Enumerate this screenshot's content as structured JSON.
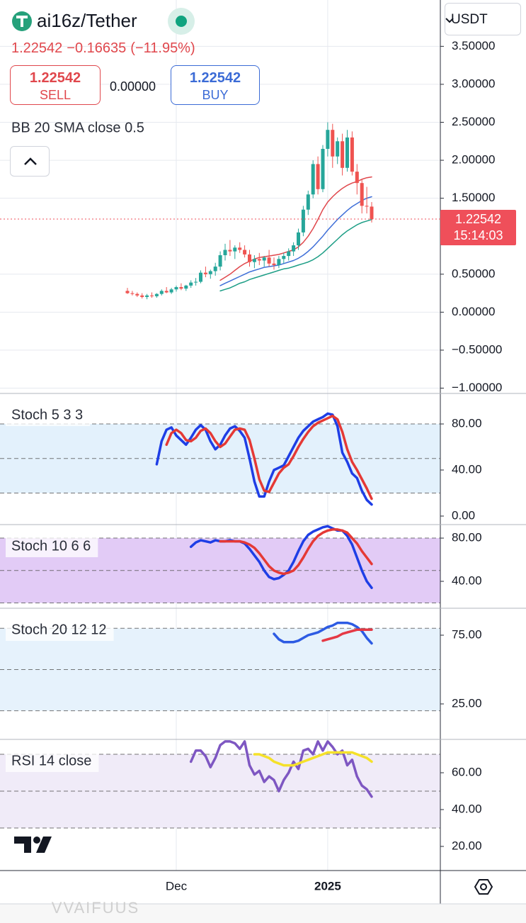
{
  "header": {
    "symbol": "ai16z/Tether",
    "price": "1.22542",
    "change": "−0.16635",
    "change_pct": "(−11.95%)",
    "sell_price": "1.22542",
    "sell_label": "SELL",
    "spread": "0.00000",
    "buy_price": "1.22542",
    "buy_label": "BUY",
    "currency": "USDT"
  },
  "price_tag": {
    "price": "1.22542",
    "countdown": "15:14:03"
  },
  "footer": "VVAIFUUS",
  "chart_data": [
    {
      "type": "candlestick",
      "title": "BB 20 SMA close 0.5",
      "categories": [
        null,
        null,
        null,
        null,
        null,
        null,
        null,
        null,
        null,
        null,
        "Dec",
        null,
        null,
        null,
        null,
        null,
        null,
        null,
        null,
        null,
        null,
        null,
        null,
        null,
        null,
        null,
        null,
        null,
        null,
        null,
        null,
        null,
        null,
        null,
        null,
        null,
        null,
        null,
        null,
        null,
        null,
        "2025",
        null,
        null,
        null,
        null,
        null,
        null,
        null,
        null,
        null
      ],
      "open": [
        0.28,
        0.25,
        0.24,
        0.22,
        0.2,
        0.22,
        0.21,
        0.24,
        0.28,
        0.26,
        0.3,
        0.33,
        0.31,
        0.35,
        0.39,
        0.4,
        0.52,
        0.5,
        0.54,
        0.6,
        0.75,
        0.82,
        0.8,
        0.85,
        0.82,
        0.76,
        0.66,
        0.7,
        0.68,
        0.72,
        0.64,
        0.62,
        0.7,
        0.74,
        0.8,
        0.88,
        1.05,
        1.35,
        1.55,
        1.95,
        1.62,
        2.15,
        2.4,
        2.05,
        2.25,
        1.9,
        2.3,
        1.85,
        1.7,
        1.4,
        1.39
      ],
      "high": [
        0.32,
        0.28,
        0.26,
        0.25,
        0.24,
        0.26,
        0.25,
        0.3,
        0.33,
        0.32,
        0.35,
        0.38,
        0.36,
        0.42,
        0.45,
        0.55,
        0.6,
        0.56,
        0.65,
        0.8,
        0.9,
        0.95,
        0.88,
        0.92,
        0.88,
        0.82,
        0.75,
        0.78,
        0.74,
        0.82,
        0.72,
        0.74,
        0.78,
        0.84,
        0.92,
        1.1,
        1.4,
        1.6,
        2.0,
        2.05,
        2.2,
        2.5,
        2.48,
        2.3,
        2.35,
        2.4,
        2.38,
        1.95,
        1.75,
        1.65,
        1.45
      ],
      "low": [
        0.24,
        0.22,
        0.2,
        0.18,
        0.17,
        0.19,
        0.19,
        0.22,
        0.25,
        0.24,
        0.27,
        0.29,
        0.28,
        0.32,
        0.35,
        0.38,
        0.46,
        0.44,
        0.48,
        0.55,
        0.68,
        0.74,
        0.7,
        0.78,
        0.72,
        0.6,
        0.58,
        0.62,
        0.6,
        0.6,
        0.56,
        0.58,
        0.64,
        0.68,
        0.74,
        0.82,
        1.0,
        1.28,
        1.5,
        1.55,
        1.58,
        2.05,
        1.9,
        1.95,
        1.8,
        1.85,
        1.8,
        1.55,
        1.3,
        1.3,
        1.18
      ],
      "close": [
        0.25,
        0.24,
        0.22,
        0.2,
        0.22,
        0.21,
        0.24,
        0.28,
        0.26,
        0.3,
        0.33,
        0.31,
        0.35,
        0.39,
        0.4,
        0.52,
        0.5,
        0.54,
        0.6,
        0.75,
        0.82,
        0.8,
        0.85,
        0.82,
        0.76,
        0.66,
        0.7,
        0.68,
        0.72,
        0.64,
        0.62,
        0.7,
        0.74,
        0.8,
        0.88,
        1.05,
        1.35,
        1.55,
        1.95,
        1.62,
        2.15,
        2.4,
        2.05,
        2.25,
        1.9,
        2.3,
        1.85,
        1.7,
        1.4,
        1.39,
        1.22542
      ],
      "up_color": "#26a69a",
      "down_color": "#ef5350",
      "overlays": [
        {
          "color": "#e0474c",
          "values": [
            null,
            null,
            null,
            null,
            null,
            null,
            null,
            null,
            null,
            null,
            null,
            null,
            null,
            null,
            null,
            null,
            null,
            null,
            null,
            0.42,
            0.46,
            0.5,
            0.55,
            0.6,
            0.64,
            0.67,
            0.7,
            0.72,
            0.73,
            0.74,
            0.75,
            0.76,
            0.78,
            0.8,
            0.82,
            0.86,
            0.92,
            1.0,
            1.1,
            1.22,
            1.35,
            1.45,
            1.52,
            1.58,
            1.63,
            1.67,
            1.7,
            1.72,
            1.75,
            1.77,
            1.78
          ]
        },
        {
          "color": "#3f6fd8",
          "values": [
            null,
            null,
            null,
            null,
            null,
            null,
            null,
            null,
            null,
            null,
            null,
            null,
            null,
            null,
            null,
            null,
            null,
            null,
            null,
            0.35,
            0.38,
            0.41,
            0.44,
            0.47,
            0.5,
            0.53,
            0.55,
            0.57,
            0.59,
            0.6,
            0.61,
            0.62,
            0.64,
            0.66,
            0.68,
            0.71,
            0.75,
            0.8,
            0.86,
            0.93,
            1.0,
            1.08,
            1.15,
            1.22,
            1.28,
            1.34,
            1.39,
            1.43,
            1.47,
            1.5,
            1.52
          ]
        },
        {
          "color": "#1d9e86",
          "values": [
            null,
            null,
            null,
            null,
            null,
            null,
            null,
            null,
            null,
            null,
            null,
            null,
            null,
            null,
            null,
            null,
            null,
            null,
            null,
            0.28,
            0.3,
            0.32,
            0.35,
            0.38,
            0.4,
            0.43,
            0.45,
            0.47,
            0.49,
            0.51,
            0.53,
            0.55,
            0.57,
            0.58,
            0.6,
            0.62,
            0.64,
            0.66,
            0.69,
            0.73,
            0.78,
            0.84,
            0.9,
            0.96,
            1.02,
            1.07,
            1.11,
            1.15,
            1.18,
            1.2,
            1.22
          ]
        }
      ],
      "ylim": [
        -1.07,
        4.11
      ],
      "yticks": [
        {
          "value": -1,
          "label": "−1.00000"
        },
        {
          "value": -0.5,
          "label": "−0.50000"
        },
        {
          "value": 0,
          "label": "0.00000"
        },
        {
          "value": 0.5,
          "label": "0.50000"
        },
        {
          "value": 1.5,
          "label": "1.50000"
        },
        {
          "value": 2,
          "label": "2.00000"
        },
        {
          "value": 2.5,
          "label": "2.50000"
        },
        {
          "value": 3,
          "label": "3.00000"
        },
        {
          "value": 3.5,
          "label": "3.50000"
        }
      ],
      "grid": true
    },
    {
      "type": "line",
      "title": "Stoch 5 3 3",
      "series": [
        {
          "color": "#1e3ee6",
          "values": [
            null,
            null,
            null,
            null,
            null,
            null,
            45,
            65,
            75,
            77,
            70,
            66,
            62,
            68,
            75,
            79,
            75,
            65,
            58,
            62,
            70,
            76,
            78,
            74,
            68,
            50,
            30,
            17,
            17,
            30,
            40,
            42,
            44,
            52,
            60,
            68,
            74,
            78,
            82,
            84,
            86,
            89,
            88,
            78,
            55,
            47,
            37,
            33,
            22,
            14,
            10
          ]
        },
        {
          "color": "#e53935",
          "values": [
            null,
            null,
            null,
            null,
            null,
            null,
            null,
            null,
            62,
            72,
            75,
            72,
            66,
            65,
            68,
            74,
            76,
            72,
            65,
            60,
            63,
            69,
            75,
            76,
            75,
            66,
            50,
            32,
            22,
            21,
            29,
            37,
            42,
            45,
            52,
            60,
            67,
            73,
            78,
            81,
            83,
            85,
            87,
            84,
            73,
            58,
            47,
            40,
            32,
            24,
            15
          ]
        }
      ],
      "ylim": [
        -7.4,
        106.5
      ],
      "yticks": [
        {
          "value": 0,
          "label": "0.00"
        },
        {
          "value": 40,
          "label": "40.00"
        },
        {
          "value": 80,
          "label": "80.00"
        }
      ],
      "band": [
        20,
        80
      ],
      "levels": [
        20,
        50,
        80
      ],
      "band_color": "#e3f1fc"
    },
    {
      "type": "line",
      "title": "Stoch 10 6 6",
      "series": [
        {
          "color": "#1e3ee6",
          "values": [
            null,
            null,
            null,
            null,
            null,
            null,
            null,
            null,
            null,
            null,
            null,
            null,
            null,
            72,
            76,
            78,
            77,
            76,
            78,
            77,
            77,
            78,
            77,
            77,
            75,
            70,
            64,
            58,
            50,
            44,
            42,
            43,
            46,
            50,
            58,
            68,
            77,
            83,
            86,
            88,
            90,
            91,
            89,
            87,
            87,
            82,
            74,
            62,
            50,
            40,
            34
          ]
        },
        {
          "color": "#e53935",
          "values": [
            null,
            null,
            null,
            null,
            null,
            null,
            null,
            null,
            null,
            null,
            null,
            null,
            null,
            null,
            null,
            null,
            null,
            null,
            null,
            77,
            77,
            77,
            77,
            77,
            76,
            74,
            71,
            66,
            60,
            54,
            50,
            48,
            47,
            48,
            50,
            55,
            62,
            70,
            77,
            82,
            85,
            87,
            88,
            88,
            87,
            85,
            80,
            75,
            68,
            62,
            56
          ]
        }
      ],
      "ylim": [
        15.1,
        92.5
      ],
      "yticks": [
        {
          "value": 40,
          "label": "40.00"
        },
        {
          "value": 80,
          "label": "80.00"
        }
      ],
      "band": [
        20,
        80
      ],
      "levels": [
        20,
        50,
        80
      ],
      "band_color": "#e2cbf6"
    },
    {
      "type": "line",
      "title": "Stoch 20 12 12",
      "series": [
        {
          "color": "#2d5be3",
          "values": [
            null,
            null,
            null,
            null,
            null,
            null,
            null,
            null,
            null,
            null,
            null,
            null,
            null,
            null,
            null,
            null,
            null,
            null,
            null,
            null,
            null,
            null,
            null,
            null,
            null,
            null,
            null,
            null,
            null,
            null,
            76,
            72,
            70,
            70,
            70,
            71,
            73,
            75,
            76,
            77,
            79,
            81,
            82,
            84,
            84,
            84,
            83,
            81,
            78,
            73,
            69
          ]
        },
        {
          "color": "#e53945",
          "values": [
            null,
            null,
            null,
            null,
            null,
            null,
            null,
            null,
            null,
            null,
            null,
            null,
            null,
            null,
            null,
            null,
            null,
            null,
            null,
            null,
            null,
            null,
            null,
            null,
            null,
            null,
            null,
            null,
            null,
            null,
            null,
            null,
            null,
            null,
            null,
            null,
            null,
            null,
            null,
            null,
            71,
            72,
            73,
            74,
            76,
            77,
            78,
            79,
            79,
            79,
            79
          ]
        }
      ],
      "ylim": [
        -0.8,
        94.6
      ],
      "yticks": [
        {
          "value": 25,
          "label": "25.00"
        },
        {
          "value": 75,
          "label": "75.00"
        }
      ],
      "band": [
        20,
        80
      ],
      "levels": [
        20,
        50,
        80
      ],
      "band_color": "#e6f2fc"
    },
    {
      "type": "line",
      "title": "RSI 14 close",
      "series": [
        {
          "color": "#7e57c2",
          "values": [
            null,
            null,
            null,
            null,
            null,
            null,
            null,
            null,
            null,
            null,
            null,
            null,
            null,
            66,
            72,
            72,
            69,
            63,
            68,
            75,
            77,
            77,
            76,
            73,
            77,
            64,
            59,
            61,
            55,
            58,
            56,
            50,
            56,
            60,
            66,
            62,
            72,
            73,
            70,
            77,
            72,
            77,
            74,
            70,
            72,
            64,
            67,
            58,
            53,
            51,
            47
          ]
        },
        {
          "color": "#f5e12a",
          "values": [
            null,
            null,
            null,
            null,
            null,
            null,
            null,
            null,
            null,
            null,
            null,
            null,
            null,
            null,
            null,
            null,
            null,
            null,
            null,
            null,
            null,
            null,
            null,
            null,
            null,
            null,
            70,
            70,
            69,
            68,
            66,
            65,
            64,
            64,
            64,
            65,
            66,
            67,
            68,
            69,
            70,
            71,
            71,
            71,
            71,
            71,
            71,
            70,
            69,
            68,
            66
          ]
        }
      ],
      "ylim": [
        6.9,
        78.1
      ],
      "yticks": [
        {
          "value": 20,
          "label": "20.00"
        },
        {
          "value": 40,
          "label": "40.00"
        },
        {
          "value": 60,
          "label": "60.00"
        }
      ],
      "band": [
        30,
        70
      ],
      "levels": [
        30,
        50,
        70
      ],
      "band_color": "#f0ebf8"
    }
  ]
}
